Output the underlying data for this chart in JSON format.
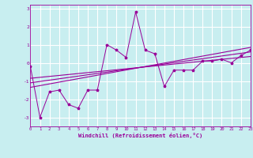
{
  "xlabel": "Windchill (Refroidissement éolien,°C)",
  "background_color": "#c8eef0",
  "grid_color": "#ffffff",
  "line_color": "#990099",
  "xlim": [
    0,
    23
  ],
  "ylim": [
    -3.5,
    3.2
  ],
  "yticks": [
    -3,
    -2,
    -1,
    0,
    1,
    2,
    3
  ],
  "xticks": [
    0,
    1,
    2,
    3,
    4,
    5,
    6,
    7,
    8,
    9,
    10,
    11,
    12,
    13,
    14,
    15,
    16,
    17,
    18,
    19,
    20,
    21,
    22,
    23
  ],
  "series1_x": [
    0,
    1,
    2,
    3,
    4,
    5,
    6,
    7,
    8,
    9,
    10,
    11,
    12,
    13,
    14,
    15,
    16,
    17,
    18,
    19,
    20,
    21,
    22,
    23
  ],
  "series1_y": [
    -0.2,
    -3.0,
    -1.6,
    -1.5,
    -2.3,
    -2.5,
    -1.5,
    -1.5,
    1.0,
    0.7,
    0.3,
    2.8,
    0.7,
    0.5,
    -1.3,
    -0.4,
    -0.4,
    -0.4,
    0.1,
    0.1,
    0.2,
    0.0,
    0.4,
    0.7
  ],
  "trend_lines": [
    {
      "x0": 0,
      "y0": -1.35,
      "x1": 23,
      "y1": 0.85
    },
    {
      "x0": 0,
      "y0": -1.1,
      "x1": 23,
      "y1": 0.6
    },
    {
      "x0": 0,
      "y0": -0.85,
      "x1": 23,
      "y1": 0.35
    }
  ]
}
